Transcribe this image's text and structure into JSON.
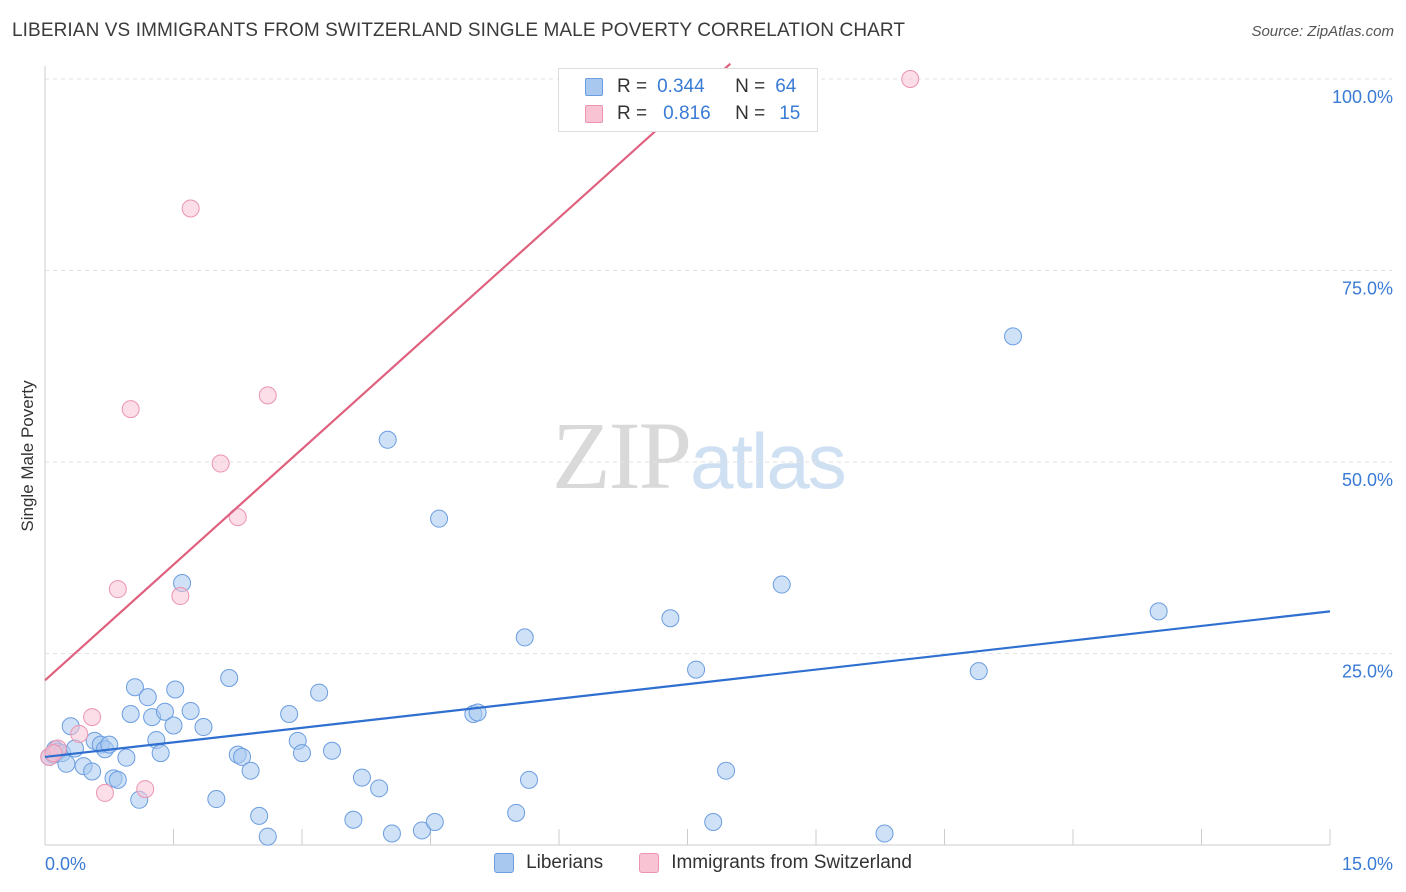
{
  "header": {
    "title": "LIBERIAN VS IMMIGRANTS FROM SWITZERLAND SINGLE MALE POVERTY CORRELATION CHART",
    "source": "Source: ZipAtlas.com"
  },
  "watermark": {
    "zip": "ZIP",
    "atlas": "atlas"
  },
  "legend": {
    "r_label": "R =",
    "n_label": "N =",
    "rows": [
      {
        "r": "0.344",
        "n": "64",
        "fill": "#a8c8f0",
        "stroke": "#6b9de0"
      },
      {
        "r": "0.816",
        "n": "15",
        "fill": "#f8c3d3",
        "stroke": "#ec94b0"
      }
    ]
  },
  "bottom_legend": [
    {
      "label": "Liberians",
      "fill": "#a8c8f0",
      "stroke": "#6b9de0"
    },
    {
      "label": "Immigrants from Switzerland",
      "fill": "#f8c3d3",
      "stroke": "#ec94b0"
    }
  ],
  "colors": {
    "blue_line": "#2f6fcf",
    "pink_line": "#e0607f",
    "tick_label": "#3a7bd5",
    "grid": "#e2e2e2"
  },
  "chart_data": {
    "type": "scatter",
    "title": "LIBERIAN VS IMMIGRANTS FROM SWITZERLAND SINGLE MALE POVERTY CORRELATION CHART",
    "xlabel": "",
    "ylabel": "Single Male Poverty",
    "xlim": [
      0,
      15
    ],
    "ylim": [
      0,
      100
    ],
    "x_tick_labels": [
      "0.0%",
      "15.0%"
    ],
    "y_tick_labels": [
      "25.0%",
      "50.0%",
      "75.0%",
      "100.0%"
    ],
    "y_ticks": [
      25,
      50,
      75,
      100
    ],
    "grid": true,
    "legend_position": "top-center",
    "series": [
      {
        "name": "Liberians",
        "color": "#a8c8f0",
        "stroke": "#6b9de0",
        "trend": {
          "x": [
            0,
            15
          ],
          "y": [
            11.5,
            30.5
          ]
        },
        "points": [
          {
            "x": 0.05,
            "y": 11.5
          },
          {
            "x": 0.1,
            "y": 11.8
          },
          {
            "x": 0.12,
            "y": 12.5
          },
          {
            "x": 0.15,
            "y": 12.2
          },
          {
            "x": 0.2,
            "y": 12.0
          },
          {
            "x": 0.25,
            "y": 10.6
          },
          {
            "x": 0.3,
            "y": 15.5
          },
          {
            "x": 0.35,
            "y": 12.6
          },
          {
            "x": 0.45,
            "y": 10.3
          },
          {
            "x": 0.55,
            "y": 9.6
          },
          {
            "x": 0.58,
            "y": 13.6
          },
          {
            "x": 0.65,
            "y": 13.1
          },
          {
            "x": 0.7,
            "y": 12.5
          },
          {
            "x": 0.75,
            "y": 13.1
          },
          {
            "x": 0.8,
            "y": 8.7
          },
          {
            "x": 0.85,
            "y": 8.5
          },
          {
            "x": 0.95,
            "y": 11.4
          },
          {
            "x": 1.0,
            "y": 17.1
          },
          {
            "x": 1.05,
            "y": 20.6
          },
          {
            "x": 1.1,
            "y": 5.9
          },
          {
            "x": 1.2,
            "y": 19.3
          },
          {
            "x": 1.25,
            "y": 16.7
          },
          {
            "x": 1.3,
            "y": 13.7
          },
          {
            "x": 1.35,
            "y": 12.0
          },
          {
            "x": 1.4,
            "y": 17.4
          },
          {
            "x": 1.5,
            "y": 15.6
          },
          {
            "x": 1.52,
            "y": 20.3
          },
          {
            "x": 1.6,
            "y": 34.2
          },
          {
            "x": 1.7,
            "y": 17.5
          },
          {
            "x": 1.85,
            "y": 15.4
          },
          {
            "x": 2.0,
            "y": 6.0
          },
          {
            "x": 2.15,
            "y": 21.8
          },
          {
            "x": 2.25,
            "y": 11.8
          },
          {
            "x": 2.3,
            "y": 11.5
          },
          {
            "x": 2.4,
            "y": 9.7
          },
          {
            "x": 2.5,
            "y": 3.8
          },
          {
            "x": 2.6,
            "y": 1.1
          },
          {
            "x": 2.85,
            "y": 17.1
          },
          {
            "x": 2.95,
            "y": 13.6
          },
          {
            "x": 3.0,
            "y": 12.0
          },
          {
            "x": 3.2,
            "y": 19.9
          },
          {
            "x": 3.35,
            "y": 12.3
          },
          {
            "x": 3.6,
            "y": 3.3
          },
          {
            "x": 3.7,
            "y": 8.8
          },
          {
            "x": 3.9,
            "y": 7.4
          },
          {
            "x": 4.0,
            "y": 52.9
          },
          {
            "x": 4.05,
            "y": 1.5
          },
          {
            "x": 4.4,
            "y": 1.9
          },
          {
            "x": 4.55,
            "y": 3.0
          },
          {
            "x": 4.6,
            "y": 42.6
          },
          {
            "x": 5.0,
            "y": 17.1
          },
          {
            "x": 5.05,
            "y": 17.3
          },
          {
            "x": 5.5,
            "y": 4.2
          },
          {
            "x": 5.6,
            "y": 27.1
          },
          {
            "x": 5.65,
            "y": 8.5
          },
          {
            "x": 7.3,
            "y": 29.6
          },
          {
            "x": 7.6,
            "y": 22.9
          },
          {
            "x": 7.8,
            "y": 3.0
          },
          {
            "x": 7.95,
            "y": 9.7
          },
          {
            "x": 8.6,
            "y": 34.0
          },
          {
            "x": 9.8,
            "y": 1.5
          },
          {
            "x": 10.9,
            "y": 22.7
          },
          {
            "x": 11.3,
            "y": 66.4
          },
          {
            "x": 13.0,
            "y": 30.5
          }
        ]
      },
      {
        "name": "Immigrants from Switzerland",
        "color": "#f8c3d3",
        "stroke": "#ec94b0",
        "trend": {
          "x": [
            0,
            8.0
          ],
          "y": [
            21.5,
            102
          ]
        },
        "points": [
          {
            "x": 0.05,
            "y": 11.5
          },
          {
            "x": 0.15,
            "y": 12.6
          },
          {
            "x": 0.4,
            "y": 14.5
          },
          {
            "x": 0.55,
            "y": 16.7
          },
          {
            "x": 0.7,
            "y": 6.8
          },
          {
            "x": 0.85,
            "y": 33.4
          },
          {
            "x": 1.0,
            "y": 56.9
          },
          {
            "x": 1.17,
            "y": 7.3
          },
          {
            "x": 1.58,
            "y": 32.5
          },
          {
            "x": 1.7,
            "y": 83.1
          },
          {
            "x": 2.05,
            "y": 49.8
          },
          {
            "x": 2.25,
            "y": 42.8
          },
          {
            "x": 2.6,
            "y": 58.7
          },
          {
            "x": 10.1,
            "y": 100.0
          },
          {
            "x": 0.1,
            "y": 12.0
          }
        ]
      }
    ]
  }
}
